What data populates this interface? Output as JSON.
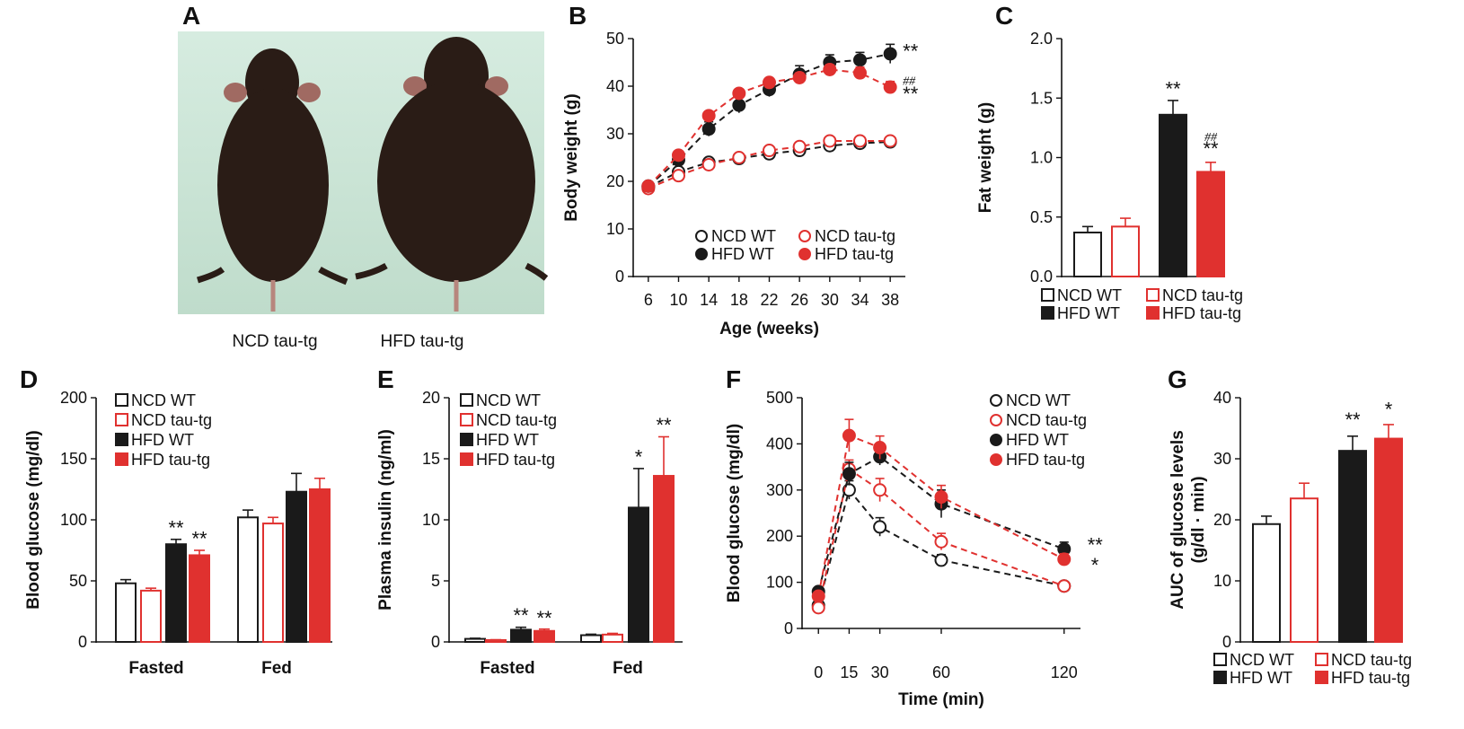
{
  "colors": {
    "wt": "#1a1a1a",
    "tg": "#e0312f",
    "photo_bg": "#cfe6d8",
    "mouse": "#2a1c16"
  },
  "series_styles": [
    {
      "name": "NCD WT",
      "color": "#1a1a1a",
      "fill": "none"
    },
    {
      "name": "NCD tau-tg",
      "color": "#e0312f",
      "fill": "none"
    },
    {
      "name": "HFD WT",
      "color": "#1a1a1a",
      "fill": "solid"
    },
    {
      "name": "HFD tau-tg",
      "color": "#e0312f",
      "fill": "solid"
    }
  ],
  "panelA": {
    "letter": "A",
    "labels": [
      "NCD tau-tg",
      "HFD tau-tg"
    ]
  },
  "chart_data": [
    {
      "id": "B",
      "letter": "B",
      "type": "line",
      "xlabel": "Age (weeks)",
      "ylabel": "Body weight (g)",
      "x": [
        6,
        10,
        14,
        18,
        22,
        26,
        30,
        34,
        38
      ],
      "ylim": [
        0,
        50
      ],
      "yticks": [
        0,
        10,
        20,
        30,
        40,
        50
      ],
      "series": [
        {
          "name": "NCD WT",
          "values": [
            18.8,
            22.0,
            24.0,
            24.8,
            25.8,
            26.5,
            27.5,
            28.0,
            28.3
          ],
          "err": [
            0.6,
            0.5,
            0.6,
            0.6,
            0.6,
            0.6,
            0.6,
            0.6,
            0.6
          ]
        },
        {
          "name": "NCD tau-tg",
          "values": [
            18.5,
            21.2,
            23.5,
            25.0,
            26.5,
            27.3,
            28.5,
            28.5,
            28.5
          ],
          "err": [
            0.6,
            0.6,
            0.6,
            0.6,
            0.6,
            0.6,
            0.6,
            0.6,
            0.6
          ]
        },
        {
          "name": "HFD WT",
          "values": [
            19.0,
            24.5,
            31.0,
            36.0,
            39.3,
            42.5,
            45.0,
            45.5,
            46.8
          ],
          "err": [
            0.8,
            1.0,
            1.5,
            1.6,
            1.5,
            1.8,
            1.6,
            1.6,
            2.0
          ]
        },
        {
          "name": "HFD tau-tg",
          "values": [
            19.0,
            25.5,
            33.8,
            38.5,
            40.8,
            41.8,
            43.5,
            42.8,
            39.8
          ],
          "err": [
            0.8,
            0.8,
            0.9,
            0.9,
            0.9,
            1.0,
            1.0,
            1.2,
            1.2
          ]
        }
      ],
      "annotations": [
        {
          "text": "**",
          "x": 38,
          "y": 47.5
        },
        {
          "text": "##",
          "x": 38,
          "y": 41.8,
          "small": true
        },
        {
          "text": "**",
          "x": 38,
          "y": 38.5
        }
      ],
      "legend": [
        "NCD WT",
        "NCD tau-tg",
        "HFD WT",
        "HFD tau-tg"
      ]
    },
    {
      "id": "C",
      "letter": "C",
      "type": "bar",
      "ylabel": "Fat weight (g)",
      "ylim": [
        0,
        2.0
      ],
      "yticks": [
        "0.0",
        "0.5",
        "1.0",
        "1.5",
        "2.0"
      ],
      "series": [
        {
          "name": "NCD WT",
          "values": [
            0.37
          ],
          "err": [
            0.05
          ]
        },
        {
          "name": "NCD tau-tg",
          "values": [
            0.42
          ],
          "err": [
            0.07
          ]
        },
        {
          "name": "HFD WT",
          "values": [
            1.36
          ],
          "err": [
            0.12
          ]
        },
        {
          "name": "HFD tau-tg",
          "values": [
            0.88
          ],
          "err": [
            0.08
          ]
        }
      ],
      "annotations": [
        {
          "text": "**",
          "series": 2,
          "y": 1.52
        },
        {
          "text": "##",
          "series": 3,
          "y": 1.14,
          "small": true
        },
        {
          "text": "**",
          "series": 3,
          "y": 1.02
        }
      ],
      "legend": [
        "NCD WT",
        "NCD tau-tg",
        "HFD WT",
        "HFD tau-tg"
      ]
    },
    {
      "id": "D",
      "letter": "D",
      "type": "bar",
      "ylabel": "Blood glucose (mg/dl)",
      "categories": [
        "Fasted",
        "Fed"
      ],
      "ylim": [
        0,
        200
      ],
      "yticks": [
        0,
        50,
        100,
        150,
        200
      ],
      "series": [
        {
          "name": "NCD WT",
          "values": [
            48,
            102
          ],
          "err": [
            3,
            6
          ]
        },
        {
          "name": "NCD tau-tg",
          "values": [
            42,
            97
          ],
          "err": [
            2,
            5
          ]
        },
        {
          "name": "HFD WT",
          "values": [
            80,
            123
          ],
          "err": [
            4,
            15
          ]
        },
        {
          "name": "HFD tau-tg",
          "values": [
            71,
            125
          ],
          "err": [
            4,
            9
          ]
        }
      ],
      "annotations": [
        {
          "text": "**",
          "category": 0,
          "series": 2,
          "y": 88
        },
        {
          "text": "**",
          "category": 0,
          "series": 3,
          "y": 79
        }
      ],
      "legend": [
        "NCD WT",
        "NCD tau-tg",
        "HFD WT",
        "HFD tau-tg"
      ]
    },
    {
      "id": "E",
      "letter": "E",
      "type": "bar",
      "ylabel": "Plasma insulin (ng/ml)",
      "categories": [
        "Fasted",
        "Fed"
      ],
      "ylim": [
        0,
        20
      ],
      "yticks": [
        0,
        5,
        10,
        15,
        20
      ],
      "series": [
        {
          "name": "NCD WT",
          "values": [
            0.25,
            0.55
          ],
          "err": [
            0.05,
            0.08
          ]
        },
        {
          "name": "NCD tau-tg",
          "values": [
            0.15,
            0.6
          ],
          "err": [
            0.03,
            0.1
          ]
        },
        {
          "name": "HFD WT",
          "values": [
            1.0,
            11.0
          ],
          "err": [
            0.2,
            3.2
          ]
        },
        {
          "name": "HFD tau-tg",
          "values": [
            0.9,
            13.6
          ],
          "err": [
            0.15,
            3.2
          ]
        }
      ],
      "annotations": [
        {
          "text": "**",
          "category": 0,
          "series": 2,
          "y": 1.6
        },
        {
          "text": "**",
          "category": 0,
          "series": 3,
          "y": 1.4
        },
        {
          "text": "*",
          "category": 1,
          "series": 2,
          "y": 14.6
        },
        {
          "text": "**",
          "category": 1,
          "series": 3,
          "y": 17.2
        }
      ],
      "legend": [
        "NCD WT",
        "NCD tau-tg",
        "HFD WT",
        "HFD tau-tg"
      ]
    },
    {
      "id": "F",
      "letter": "F",
      "type": "line",
      "xlabel": "Time (min)",
      "ylabel": "Blood glucose (mg/dl)",
      "x": [
        0,
        15,
        30,
        60,
        120
      ],
      "ylim": [
        0,
        500
      ],
      "yticks": [
        0,
        100,
        200,
        300,
        400,
        500
      ],
      "series": [
        {
          "name": "NCD WT",
          "values": [
            50,
            300,
            220,
            148,
            92
          ],
          "err": [
            5,
            20,
            20,
            12,
            8
          ]
        },
        {
          "name": "NCD tau-tg",
          "values": [
            45,
            345,
            300,
            188,
            92
          ],
          "err": [
            5,
            20,
            25,
            18,
            8
          ]
        },
        {
          "name": "HFD WT",
          "values": [
            80,
            335,
            372,
            270,
            172
          ],
          "err": [
            8,
            25,
            18,
            30,
            15
          ]
        },
        {
          "name": "HFD tau-tg",
          "values": [
            70,
            418,
            392,
            285,
            150
          ],
          "err": [
            8,
            35,
            25,
            25,
            12
          ]
        }
      ],
      "annotations": [
        {
          "text": "**",
          "x": 120,
          "y": 182,
          "dx": 12
        },
        {
          "text": "*",
          "x": 120,
          "y": 138,
          "dx": 16
        }
      ],
      "legend": [
        "NCD WT",
        "NCD tau-tg",
        "HFD WT",
        "HFD tau-tg"
      ]
    },
    {
      "id": "G",
      "letter": "G",
      "type": "bar",
      "ylabel": "AUC of glucose levels",
      "ylabel2": "(g/dl · min)",
      "ylim": [
        0,
        40
      ],
      "yticks": [
        0,
        10,
        20,
        30,
        40
      ],
      "series": [
        {
          "name": "NCD WT",
          "values": [
            19.3
          ],
          "err": [
            1.3
          ]
        },
        {
          "name": "NCD tau-tg",
          "values": [
            23.5
          ],
          "err": [
            2.5
          ]
        },
        {
          "name": "HFD WT",
          "values": [
            31.3
          ],
          "err": [
            2.4
          ]
        },
        {
          "name": "HFD tau-tg",
          "values": [
            33.3
          ],
          "err": [
            2.3
          ]
        }
      ],
      "annotations": [
        {
          "text": "**",
          "series": 2,
          "y": 35.3
        },
        {
          "text": "*",
          "series": 3,
          "y": 37.0
        }
      ],
      "legend": [
        "NCD WT",
        "NCD tau-tg",
        "HFD WT",
        "HFD tau-tg"
      ]
    }
  ]
}
